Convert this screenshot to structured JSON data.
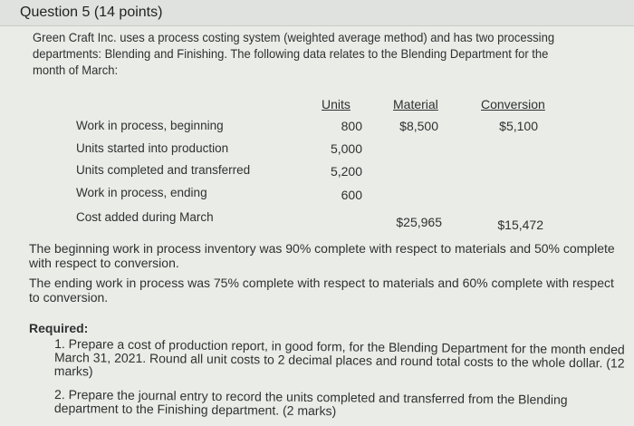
{
  "question": {
    "title": "Question 5",
    "points": "(14 points)"
  },
  "intro": "Green Craft Inc. uses a process costing system (weighted average method) and has two processing departments: Blending and Finishing.  The following data relates to the Blending Department for the month of March:",
  "table": {
    "headers": [
      "Units",
      "Material",
      "Conversion"
    ],
    "rows": [
      {
        "label": "Work in process, beginning",
        "units": "800",
        "material": "$8,500",
        "conversion": "$5,100"
      },
      {
        "label": "Units started into production",
        "units": "5,000"
      },
      {
        "label": "Units completed and transferred",
        "units": "5,200"
      },
      {
        "label": "Work in process, ending",
        "units": "600"
      },
      {
        "label": "Cost added during March",
        "material": "$25,965",
        "conversion": "$15,472"
      }
    ]
  },
  "notes": [
    "The beginning work in process inventory was 90% complete with respect to materials and 50% complete with respect to conversion.",
    "The ending work in process was 75% complete with respect to materials and 60% complete with respect to conversion."
  ],
  "required": {
    "label": "Required:",
    "items": [
      "1. Prepare a cost of production report, in good form, for the Blending Department for the month ended March 31, 2021.  Round all unit costs to 2 decimal places and round total costs to the whole dollar. (12 marks)",
      "2. Prepare the journal entry to record the units completed and transferred from the Blending department to the Finishing department. (2 marks)"
    ]
  }
}
